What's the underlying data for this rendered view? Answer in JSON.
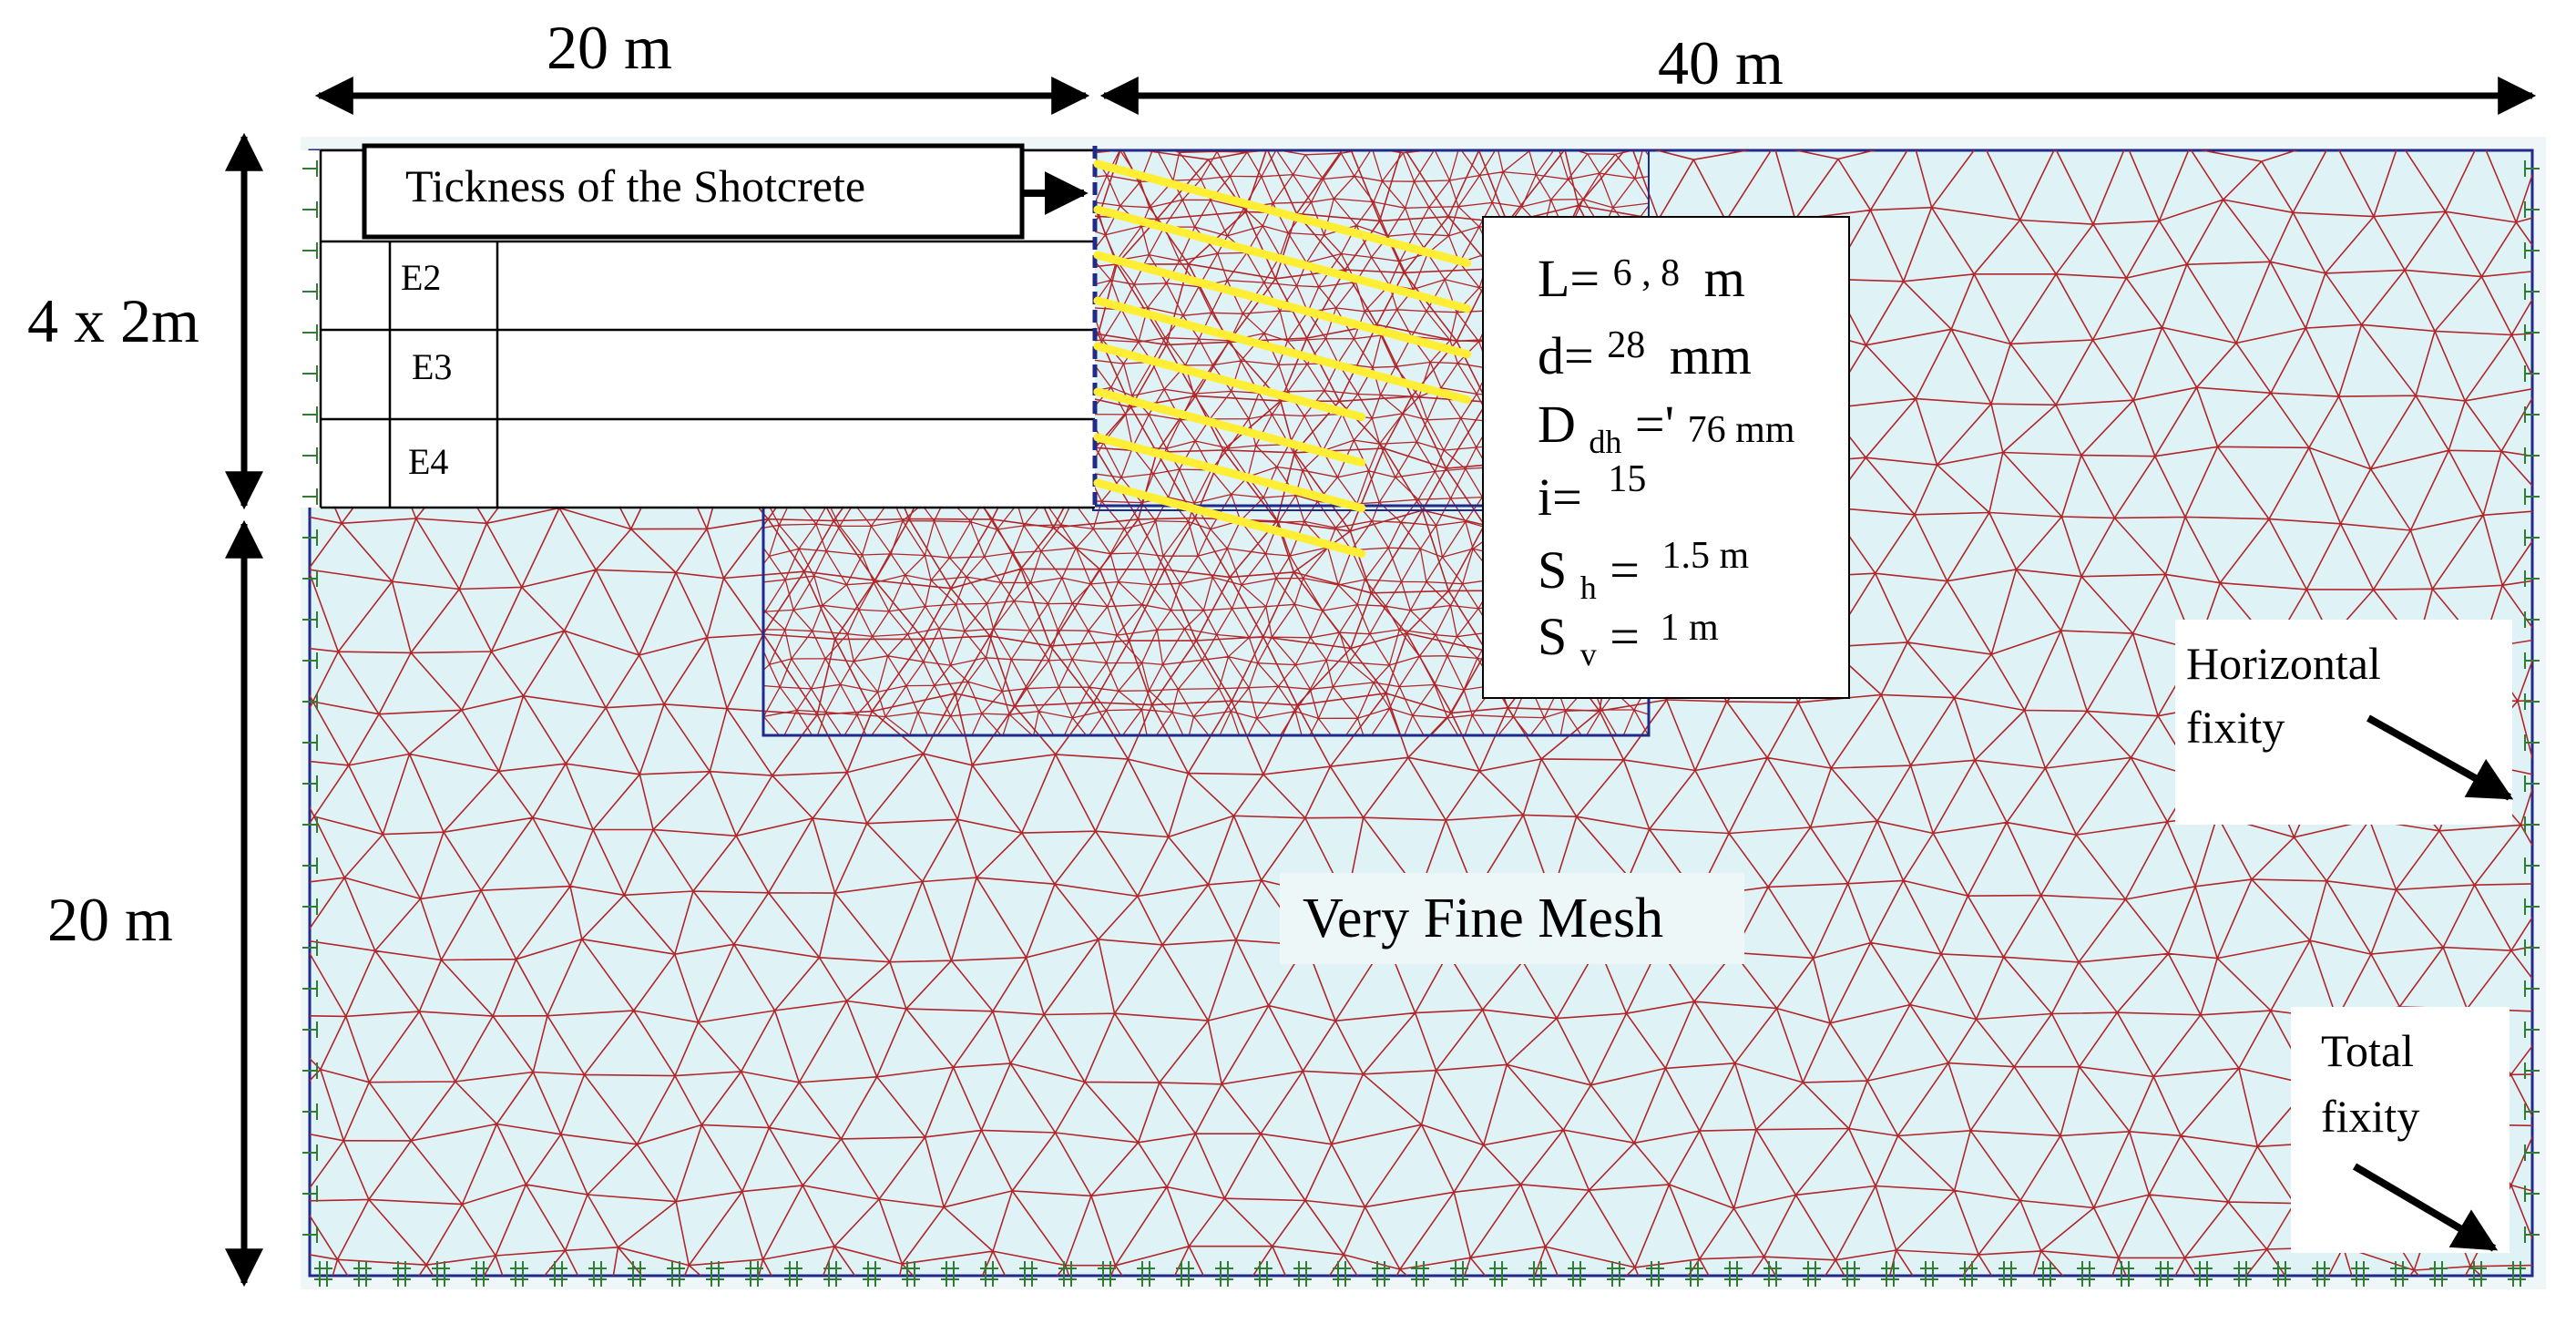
{
  "dimensions": {
    "top_left": "20 m",
    "top_right": "40 m",
    "left_top": "4 x 2m",
    "left_bottom": "20 m"
  },
  "excavation": {
    "shotcrete_label": "Tickness of the Shotcrete",
    "stage_labels": [
      "E2",
      "E3",
      "E4"
    ]
  },
  "nail_params": {
    "L_label": "L=",
    "L_value": "6 , 8",
    "L_unit": "m",
    "d_label": "d=",
    "d_value": "28",
    "d_unit": "mm",
    "Ddh_label": "D",
    "Ddh_sub": "dh",
    "Ddh_eq": "='",
    "Ddh_value": "76 mm",
    "i_label": "i=",
    "i_value": "15",
    "Sh_label": "S",
    "Sh_sub": "h",
    "Sh_eq": "=",
    "Sh_value": "1.5 m",
    "Sv_label": "S",
    "Sv_sub": "v",
    "Sv_eq": "=",
    "Sv_value": "1 m"
  },
  "mesh_label": "Very Fine Mesh",
  "fixity": {
    "horizontal_line1": "Horizontal",
    "horizontal_line2": "fixity",
    "total_line1": "Total",
    "total_line2": "fixity"
  },
  "colors": {
    "mesh_line": "#b0262a",
    "soil_fill": "#dff3f6",
    "nail": "#ffee33",
    "boundary": "#1f2a8a",
    "fixity": "#2e7d32"
  }
}
